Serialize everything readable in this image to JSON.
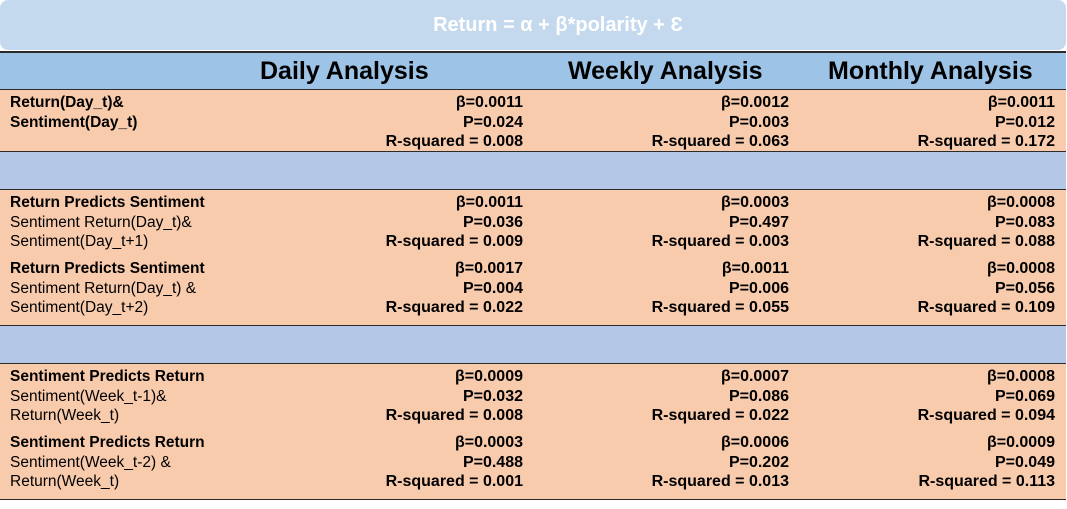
{
  "title": "Return = α + β*polarity + Ɛ",
  "headers": {
    "daily": "Daily Analysis",
    "weekly": "Weekly Analysis",
    "monthly": "Monthly Analysis"
  },
  "rows": [
    {
      "label_bold": [
        "Return(Day_t)&",
        "Sentiment(Day_t)"
      ],
      "label_lines": [],
      "daily": {
        "beta": "β=0.0011",
        "p": "P=0.024",
        "r2": "R-squared = 0.008"
      },
      "weekly": {
        "beta": "β=0.0012",
        "p": "P=0.003",
        "r2": "R-squared = 0.063"
      },
      "monthly": {
        "beta": "β=0.0011",
        "p": "P=0.012",
        "r2": "R-squared = 0.172"
      }
    },
    {
      "label_bold": [
        "Return Predicts Sentiment"
      ],
      "label_lines": [
        "Sentiment Return(Day_t)&",
        "Sentiment(Day_t+1)"
      ],
      "daily": {
        "beta": "β=0.0011",
        "p": "P=0.036",
        "r2": "R-squared = 0.009"
      },
      "weekly": {
        "beta": "β=0.0003",
        "p": "P=0.497",
        "r2": "R-squared = 0.003"
      },
      "monthly": {
        "beta": "β=0.0008",
        "p": "P=0.083",
        "r2": "R-squared = 0.088"
      }
    },
    {
      "label_bold": [
        "Return Predicts Sentiment"
      ],
      "label_lines": [
        "Sentiment Return(Day_t) &",
        "Sentiment(Day_t+2)"
      ],
      "daily": {
        "beta": "β=0.0017",
        "p": "P=0.004",
        "r2": "R-squared = 0.022"
      },
      "weekly": {
        "beta": "β=0.0011",
        "p": "P=0.006",
        "r2": "R-squared = 0.055"
      },
      "monthly": {
        "beta": "β=0.0008",
        "p": "P=0.056",
        "r2": "R-squared = 0.109"
      }
    },
    {
      "label_bold": [
        "Sentiment Predicts Return"
      ],
      "label_lines": [
        "Sentiment(Week_t-1)&",
        "Return(Week_t)"
      ],
      "daily": {
        "beta": "β=0.0009",
        "p": "P=0.032",
        "r2": "R-squared = 0.008"
      },
      "weekly": {
        "beta": "β=0.0007",
        "p": "P=0.086",
        "r2": "R-squared = 0.022"
      },
      "monthly": {
        "beta": "β=0.0008",
        "p": "P=0.069",
        "r2": "R-squared = 0.094"
      }
    },
    {
      "label_bold": [
        "Sentiment Predicts Return"
      ],
      "label_lines": [
        "Sentiment(Week_t-2) &",
        "Return(Week_t)"
      ],
      "daily": {
        "beta": "β=0.0003",
        "p": "P=0.488",
        "r2": "R-squared = 0.001"
      },
      "weekly": {
        "beta": "β=0.0006",
        "p": "P=0.202",
        "r2": "R-squared = 0.013"
      },
      "monthly": {
        "beta": "β=0.0009",
        "p": "P=0.049",
        "r2": "R-squared = 0.113"
      }
    }
  ],
  "colors": {
    "title_bg": "#c5d9ee",
    "header_bg": "#9dc3e6",
    "row_bg": "#f8cbad",
    "spacer_bg": "#b4c7e7"
  }
}
